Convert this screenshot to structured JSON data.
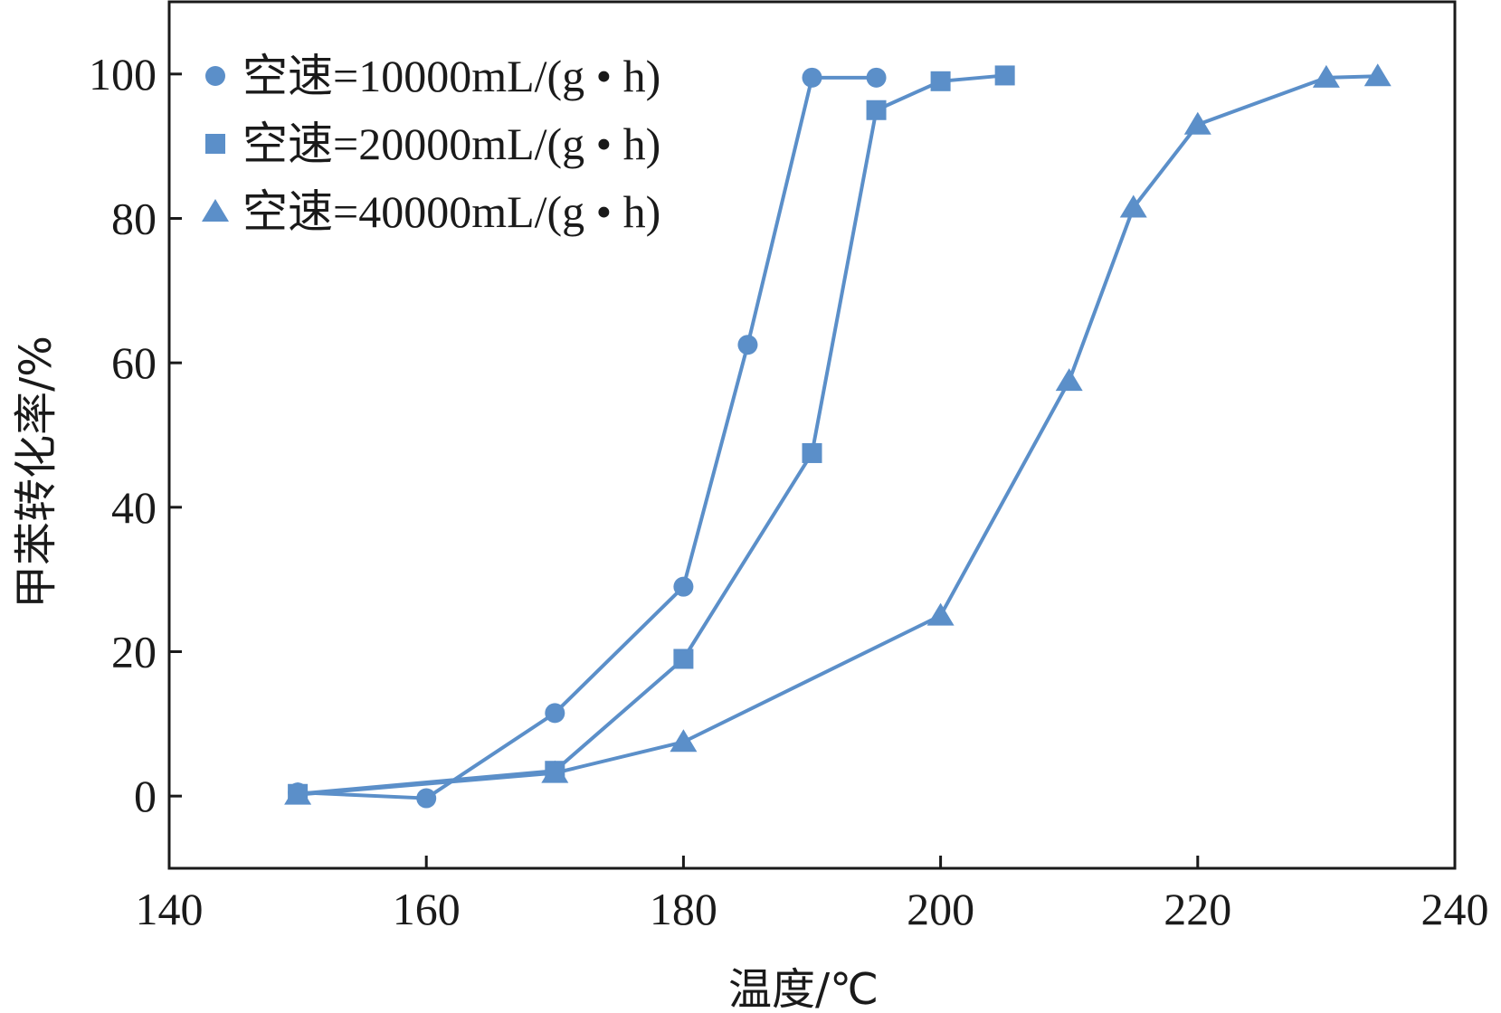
{
  "chart_data": {
    "type": "line",
    "xlabel": "温度/℃",
    "ylabel": "甲苯转化率/%",
    "xlim": [
      140,
      240
    ],
    "ylim": [
      -10,
      110
    ],
    "xticks": [
      "140",
      "160",
      "180",
      "200",
      "220",
      "240"
    ],
    "yticks": [
      "0",
      "20",
      "40",
      "60",
      "80",
      "100"
    ],
    "grid": false,
    "legend_position": "top-left",
    "line_color": "#5b8fc9",
    "series": [
      {
        "name": "空速=10000mL/(g • h)",
        "marker": "circle",
        "x": [
          150,
          160,
          170,
          180,
          185,
          190,
          195
        ],
        "y": [
          0.5,
          -0.3,
          11.5,
          29,
          62.5,
          99.5,
          99.5
        ]
      },
      {
        "name": "空速=20000mL/(g • h)",
        "marker": "square",
        "x": [
          150,
          170,
          180,
          190,
          195,
          200,
          205
        ],
        "y": [
          0.3,
          3.5,
          19,
          47.5,
          95,
          99,
          99.8
        ]
      },
      {
        "name": "空速=40000mL/(g • h)",
        "marker": "triangle",
        "x": [
          150,
          170,
          180,
          200,
          210,
          215,
          220,
          230,
          234
        ],
        "y": [
          0.2,
          3.2,
          7.5,
          25,
          57.5,
          81.5,
          93,
          99.5,
          99.7
        ]
      }
    ]
  }
}
